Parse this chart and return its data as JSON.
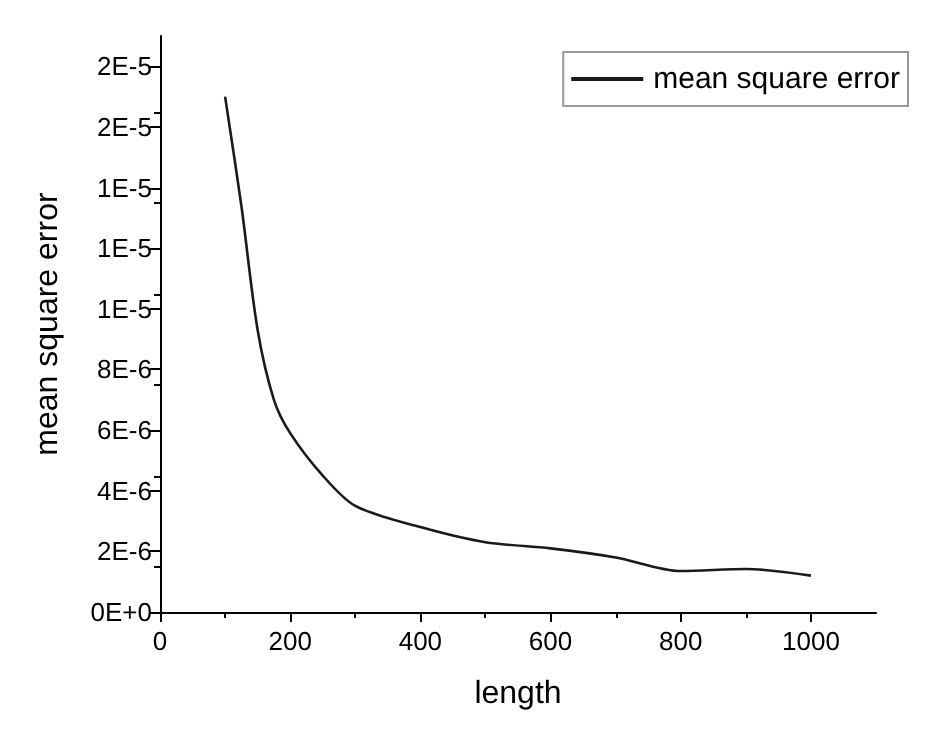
{
  "chart_data": {
    "type": "line",
    "xlabel": "length",
    "ylabel": "mean square error",
    "x": [
      100,
      125,
      150,
      175,
      200,
      250,
      300,
      400,
      500,
      600,
      700,
      800,
      900,
      1000
    ],
    "series": [
      {
        "name": "mean square error",
        "color": "#1a1a1a",
        "values": [
          1.7e-05,
          1.34e-05,
          9.3e-06,
          7e-06,
          5.9e-06,
          4.5e-06,
          3.5e-06,
          2.8e-06,
          2.3e-06,
          2.1e-06,
          1.8e-06,
          1.35e-06,
          1.42e-06,
          1.2e-06
        ]
      }
    ],
    "xlim": [
      0,
      1100
    ],
    "xticks": [
      0,
      200,
      400,
      600,
      800,
      1000
    ],
    "ylim": [
      0,
      1.9e-05
    ],
    "yticks": [
      {
        "value": 0,
        "label": "0E+0"
      },
      {
        "value": 2e-06,
        "label": "2E-6"
      },
      {
        "value": 4e-06,
        "label": "4E-6"
      },
      {
        "value": 6e-06,
        "label": "6E-6"
      },
      {
        "value": 8e-06,
        "label": "8E-6"
      },
      {
        "value": 1e-05,
        "label": "1E-5"
      },
      {
        "value": 1.2e-05,
        "label": "1E-5"
      },
      {
        "value": 1.4e-05,
        "label": "1E-5"
      },
      {
        "value": 1.6e-05,
        "label": "2E-5"
      },
      {
        "value": 1.8e-05,
        "label": "2E-5"
      }
    ],
    "grid": false,
    "legend": "top right",
    "marker": "none",
    "line_style": "solid"
  }
}
